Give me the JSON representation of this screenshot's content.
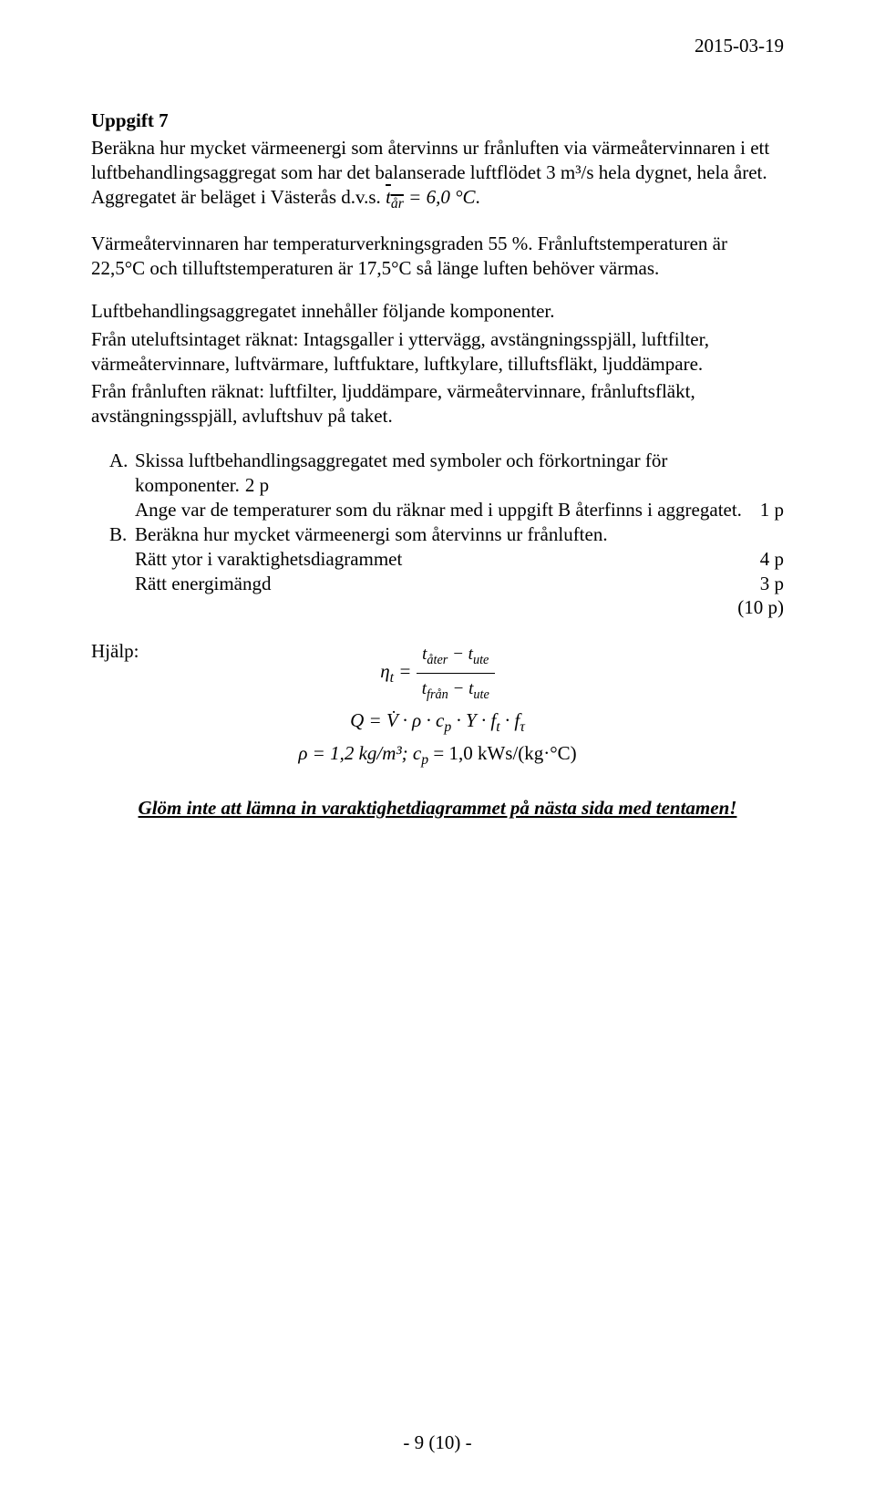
{
  "date": "2015-03-19",
  "taskTitle": "Uppgift 7",
  "intro1": "Beräkna hur mycket värmeenergi som återvinns ur frånluften via värmeåtervinnaren i ett luftbehandlingsaggregat som har det balanserade luftflödet 3 m³/s hela dygnet, hela året. Aggregatet är beläget i Västerås d.v.s. ",
  "tEq": " = 6,0 °C",
  "introDot": ".",
  "intro2": "Värmeåtervinnaren har temperaturverkningsgraden 55 %. Frånluftstemperaturen är 22,5°C och tilluftstemperaturen är 17,5°C så länge luften behöver värmas.",
  "compHeader": "Luftbehandlingsaggregatet innehåller följande komponenter.",
  "compUte": "Från uteluftsintaget räknat: Intagsgaller i yttervägg, avstängningsspjäll, luftfilter, värmeåtervinnare, luftvärmare, luftfuktare, luftkylare, tilluftsfläkt, ljuddämpare.",
  "compFran": "Från frånluften räknat: luftfilter, ljuddämpare, värmeåtervinnare, frånluftsfläkt, avstängningsspjäll, avluftshuv på taket.",
  "qA1": "Skissa luftbehandlingsaggregatet med symboler och förkortningar för komponenter.",
  "qA1pts": "2 p",
  "qA2": "Ange var de temperaturer som du räknar med i uppgift B återfinns i aggregatet.",
  "qA2pts": "1 p",
  "qB1": "Beräkna hur mycket värmeenergi som återvinns ur frånluften.",
  "qB2": "Rätt ytor i varaktighetsdiagrammet",
  "qB2pts": "4 p",
  "qB3": "Rätt energimängd",
  "qB3pts": "3 p",
  "qTotal": "(10 p)",
  "helpLabel": "Hjälp:",
  "etaLHS": "η",
  "etaSubT": "t",
  "tAter": "t",
  "subAter": "åter",
  "tUte": "t",
  "subUte": "ute",
  "tFran": "t",
  "subFran": "från",
  "minus": " − ",
  "qFormula": "Q = V̇ · ρ · c",
  "subP": "p",
  "qFormula2": " · Y · f",
  "subT2": "t",
  "qFormula3": " · f",
  "subTau": "τ",
  "consts": "ρ = 1,2 kg/m³; c",
  "constsP": "p",
  "consts2": " = 1,0 kWs/(kg·°C)",
  "reminder": "Glöm inte att lämna in varaktighetdiagrammet på nästa sida med tentamen!",
  "footer": "- 9 (10) -"
}
